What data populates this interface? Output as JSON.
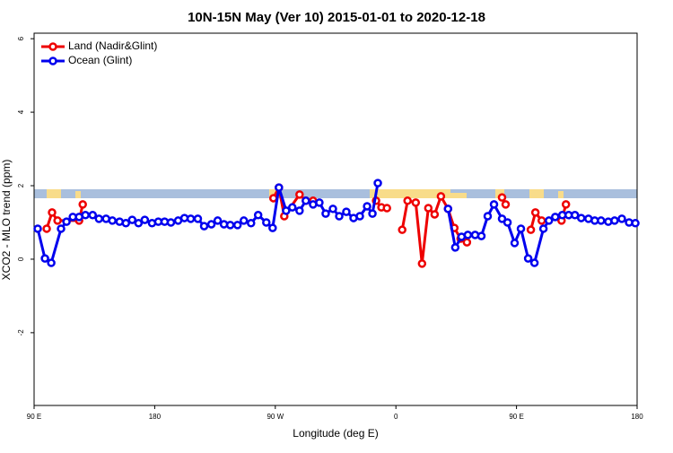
{
  "chart_data": {
    "type": "line",
    "title": "10N-15N May (Ver 10)   2015-01-01 to 2020-12-18",
    "x_label": "Longitude (deg E)",
    "y_label": "XCO2 - MLO trend (ppm)",
    "xlim": [
      90,
      540
    ],
    "ylim": [
      -3.98,
      6.15
    ],
    "xticks": [
      {
        "value": 90,
        "label": "90 E"
      },
      180,
      {
        "value": 270,
        "label": "90 W"
      },
      {
        "value": 360,
        "label": "0"
      },
      {
        "value": 450,
        "label": "90 E"
      },
      {
        "value": 540,
        "label": "180"
      }
    ],
    "yticks": [
      -2,
      0,
      2,
      4,
      6
    ],
    "legend": "top-left",
    "series": [
      {
        "name": "Land (Nadir&Glint)",
        "color": "#ee0000",
        "x": [
          99.4,
          103.4,
          107.5,
          123.6,
          126.3,
          200,
          268.6,
          272.7,
          276.7,
          288.1,
          292.8,
          298.2,
          320,
          345.2,
          349.2,
          353.3,
          360,
          364.7,
          368.7,
          374.8,
          379.5,
          384.2,
          388.9,
          393.6,
          398.9,
          403.6,
          408.3,
          413.0,
          425,
          439.2,
          441.9,
          450,
          460.7,
          464.1,
          468.8,
          475,
          483.6,
          486.9
        ],
        "values": [
          0.83,
          1.27,
          1.05,
          1.05,
          1.49,
          null,
          1.66,
          1.95,
          1.17,
          1.76,
          1.59,
          1.59,
          null,
          1.59,
          1.41,
          1.39,
          null,
          0.8,
          1.59,
          1.54,
          -0.12,
          1.39,
          1.22,
          1.71,
          1.37,
          0.85,
          0.56,
          0.46,
          null,
          1.68,
          1.49,
          null,
          0.8,
          1.27,
          1.05,
          null,
          1.05,
          1.49
        ]
      },
      {
        "name": "Ocean (Glint)",
        "color": "#0000ee",
        "x": [
          92.7,
          98.1,
          102.8,
          110.1,
          114.2,
          118.9,
          123.6,
          128.3,
          133.7,
          138.4,
          143.7,
          148.4,
          153.8,
          158.5,
          163.2,
          167.9,
          172.6,
          178.0,
          182.7,
          187.4,
          192.1,
          197.5,
          202.2,
          206.9,
          212.2,
          216.9,
          222.3,
          227.0,
          231.7,
          236.4,
          241.8,
          246.5,
          251.9,
          257.2,
          263.3,
          268.0,
          272.7,
          278.1,
          282.7,
          288.1,
          292.8,
          298.2,
          302.9,
          307.6,
          313.0,
          317.7,
          323.0,
          328.4,
          333.1,
          338.5,
          342.5,
          346.5,
          372.7,
          398.9,
          404.3,
          409.0,
          413.7,
          419.1,
          423.8,
          428.5,
          433.2,
          439.2,
          443.3,
          448.6,
          453.3,
          458.7,
          463.4,
          470.1,
          474.2,
          478.9,
          484.2,
          488.9,
          493.6,
          498.3,
          503.7,
          508.4,
          513.1,
          518.5,
          523.2,
          528.6,
          534.0,
          538.7
        ],
        "values": [
          0.83,
          0.02,
          -0.1,
          0.83,
          1.02,
          1.15,
          1.15,
          1.2,
          1.2,
          1.1,
          1.1,
          1.05,
          1.02,
          0.98,
          1.07,
          0.98,
          1.07,
          0.98,
          1.02,
          1.02,
          1.0,
          1.05,
          1.12,
          1.1,
          1.1,
          0.9,
          0.95,
          1.05,
          0.95,
          0.93,
          0.93,
          1.05,
          0.98,
          1.2,
          1.0,
          0.85,
          1.95,
          1.32,
          1.41,
          1.32,
          1.59,
          1.49,
          1.54,
          1.24,
          1.37,
          1.17,
          1.29,
          1.12,
          1.17,
          1.44,
          1.24,
          2.07,
          null,
          1.37,
          0.32,
          0.61,
          0.66,
          0.66,
          0.63,
          1.17,
          1.49,
          1.1,
          1.0,
          0.44,
          0.83,
          0.02,
          -0.1,
          0.83,
          1.05,
          1.15,
          1.2,
          1.2,
          1.2,
          1.12,
          1.1,
          1.05,
          1.05,
          1.02,
          1.05,
          1.1,
          1.0,
          0.98
        ]
      }
    ]
  }
}
